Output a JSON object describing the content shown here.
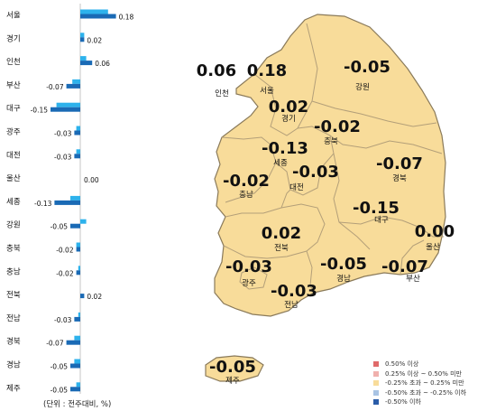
{
  "chart_data": [
    {
      "type": "bar",
      "orientation": "horizontal",
      "categories": [
        "서울",
        "경기",
        "인천",
        "부산",
        "대구",
        "광주",
        "대전",
        "울산",
        "세종",
        "강원",
        "충북",
        "충남",
        "전북",
        "전남",
        "경북",
        "경남",
        "제주"
      ],
      "series": [
        {
          "values": [
            0.14,
            0.02,
            0.03,
            -0.04,
            -0.12,
            -0.02,
            -0.02,
            0.0,
            -0.05,
            0.03,
            -0.02,
            -0.01,
            0.0,
            -0.01,
            -0.03,
            -0.03,
            -0.02
          ]
        },
        {
          "values": [
            0.18,
            0.02,
            0.06,
            -0.07,
            -0.15,
            -0.03,
            -0.03,
            0.0,
            -0.13,
            -0.05,
            -0.02,
            -0.02,
            0.02,
            -0.03,
            -0.07,
            -0.05,
            -0.05
          ]
        }
      ],
      "value_labels": [
        "0.18",
        "0.02",
        "0.06",
        "-0.07",
        "-0.15",
        "-0.03",
        "-0.03",
        "0.00",
        "-0.13",
        "-0.05",
        "-0.02",
        "-0.02",
        "0.02",
        "-0.03",
        "-0.07",
        "-0.05",
        "-0.05"
      ],
      "colors": {
        "previous_week": "#2db2ec",
        "current_week": "#1a6ab5"
      },
      "note": "(단위 : 전주대비, %)"
    },
    {
      "type": "map",
      "regions": [
        {
          "name": "인천",
          "value": "0.06"
        },
        {
          "name": "서울",
          "value": "0.18"
        },
        {
          "name": "강원",
          "value": "-0.05"
        },
        {
          "name": "경기",
          "value": "0.02"
        },
        {
          "name": "충북",
          "value": "-0.02"
        },
        {
          "name": "세종",
          "value": "-0.13"
        },
        {
          "name": "충남",
          "value": "-0.02"
        },
        {
          "name": "대전",
          "value": "-0.03"
        },
        {
          "name": "경북",
          "value": "-0.07"
        },
        {
          "name": "대구",
          "value": "-0.15"
        },
        {
          "name": "전북",
          "value": "0.02"
        },
        {
          "name": "울산",
          "value": "0.00"
        },
        {
          "name": "광주",
          "value": "-0.03"
        },
        {
          "name": "경남",
          "value": "-0.05"
        },
        {
          "name": "부산",
          "value": "-0.07"
        },
        {
          "name": "전남",
          "value": "-0.03"
        },
        {
          "name": "제주",
          "value": "-0.05"
        }
      ],
      "legend": [
        {
          "label": "0.50% 이상",
          "color": "#e06a6a"
        },
        {
          "label": "0.25% 이상 ~ 0.50% 미만",
          "color": "#f0b0ad"
        },
        {
          "label": "-0.25% 초과 ~ 0.25% 미만",
          "color": "#f8dc9a"
        },
        {
          "label": "-0.50% 초과 ~ -0.25% 이하",
          "color": "#a9c4e4"
        },
        {
          "label": "-0.50% 이하",
          "color": "#2a5ca8"
        }
      ],
      "fill_color": "#f8dc9a",
      "border_color": "#8a7a5a"
    }
  ]
}
